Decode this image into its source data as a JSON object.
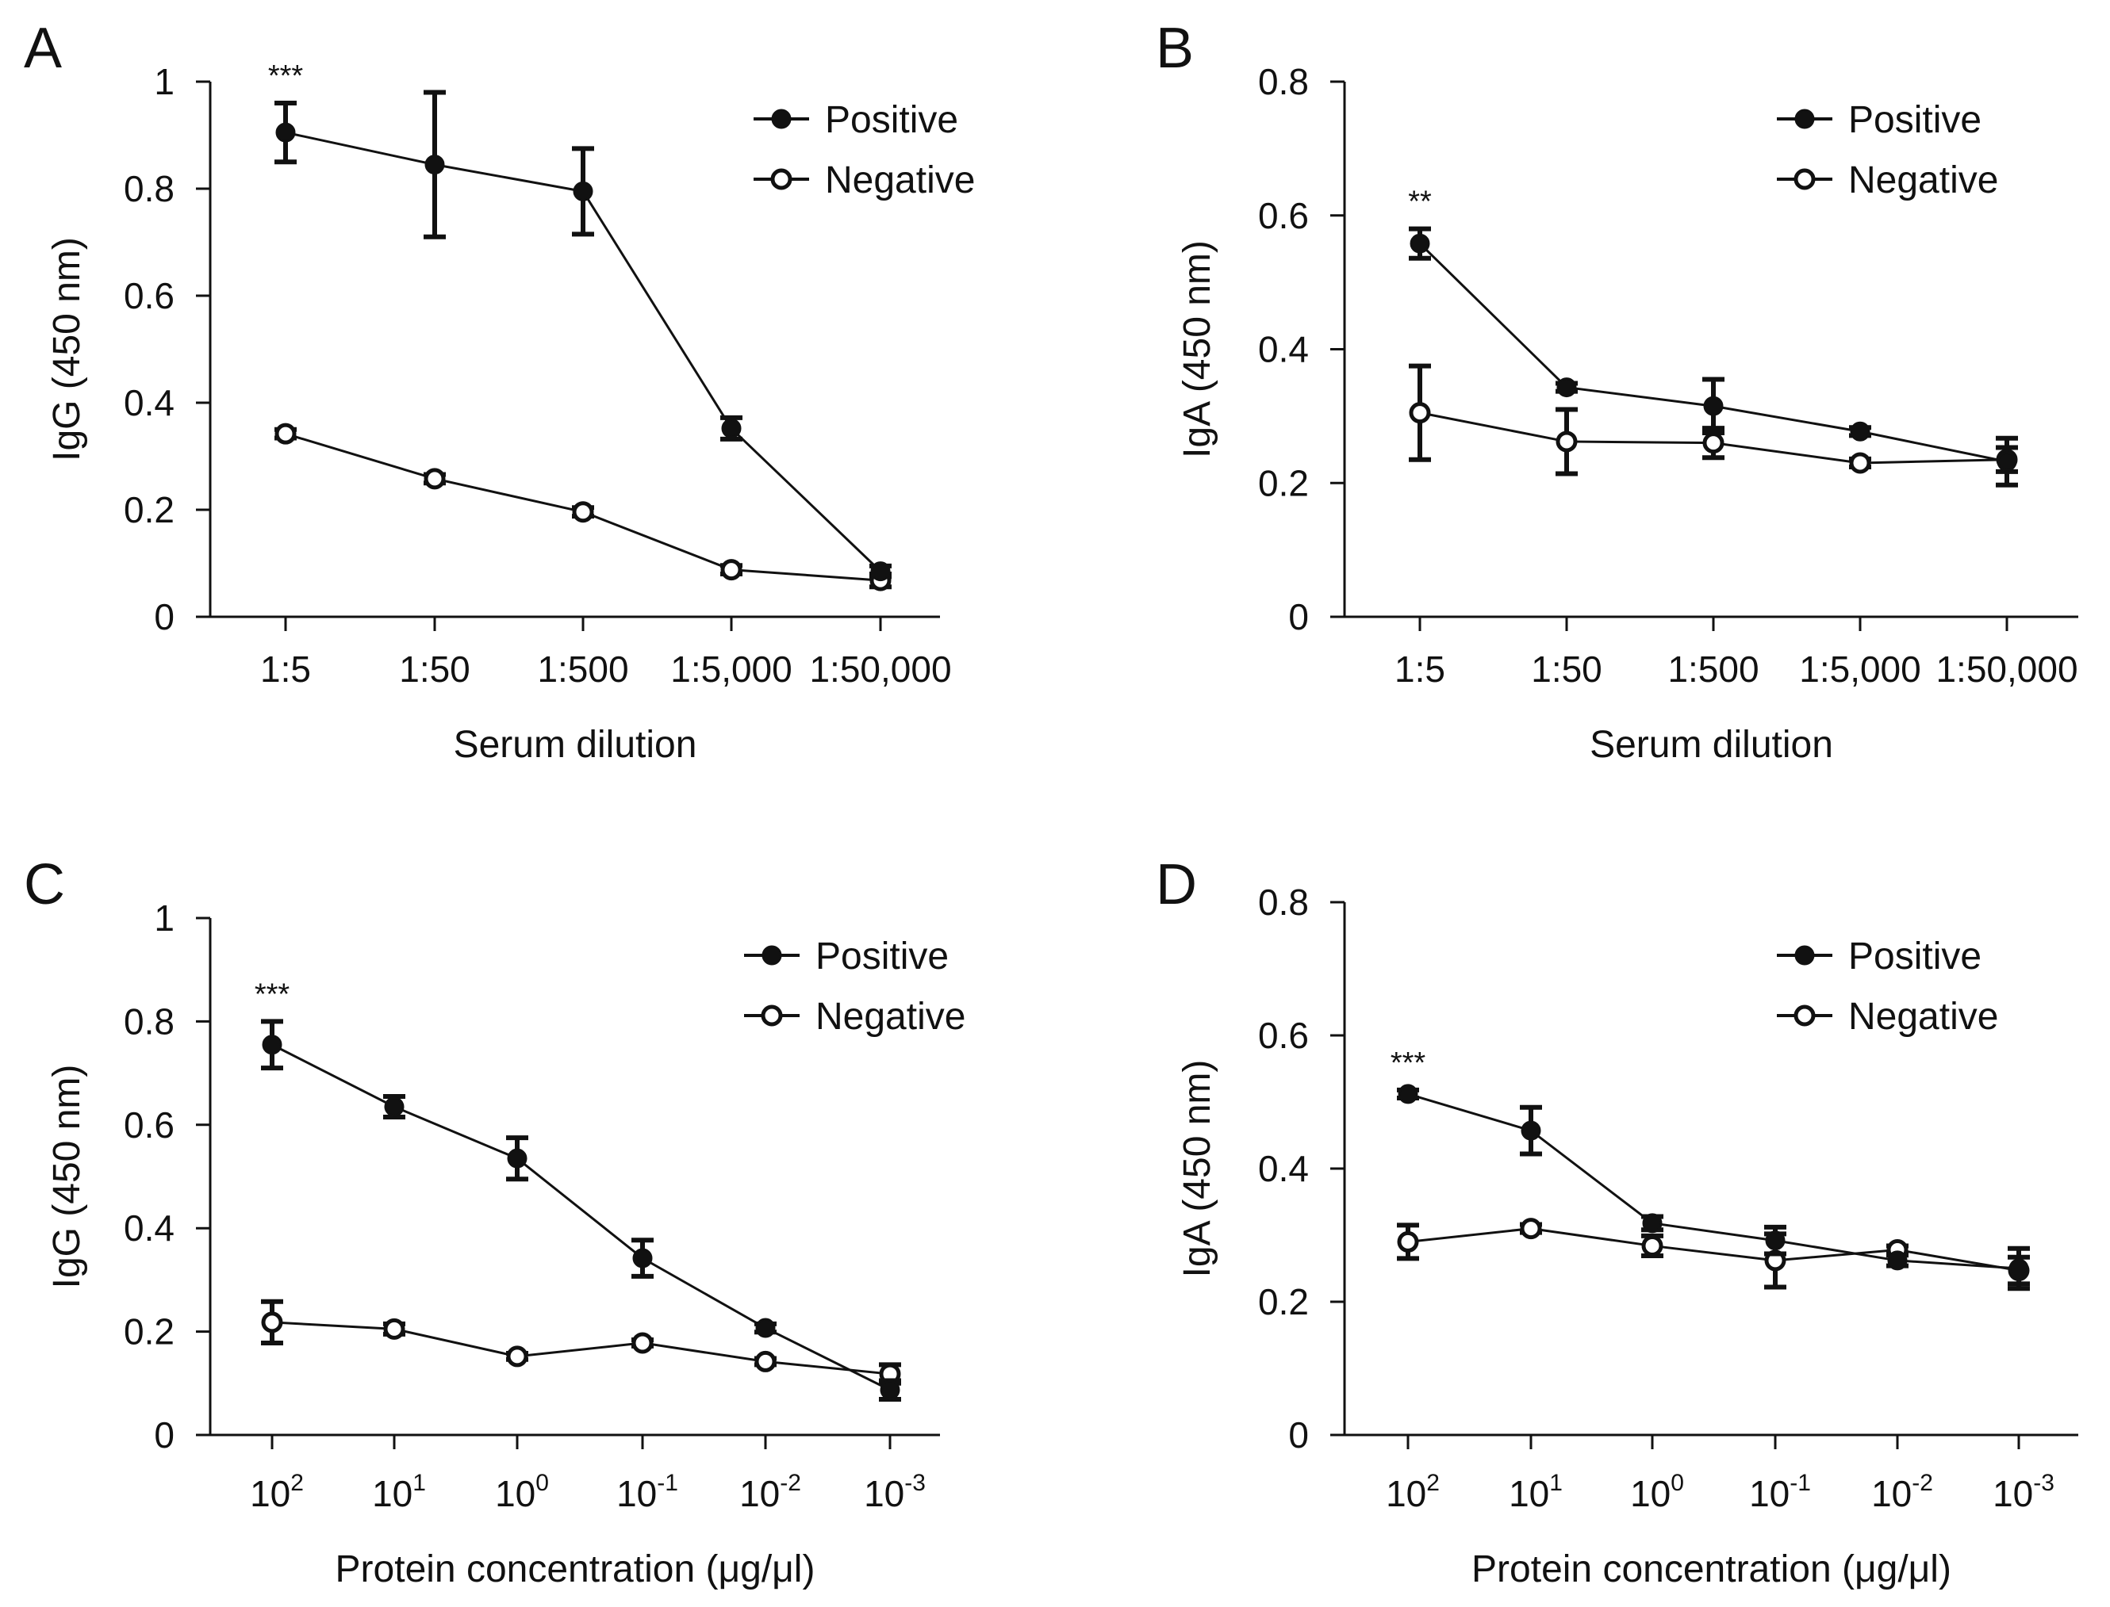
{
  "colors": {
    "ink": "#111111",
    "background": "#ffffff",
    "hollow": "#ffffff"
  },
  "chart_data": [
    {
      "panel": "A",
      "type": "line",
      "categories": [
        "1:5",
        "1:50",
        "1:500",
        "1:5,000",
        "1:50,000"
      ],
      "xlabel": "Serum dilution",
      "ylabel": "IgG (450 nm)",
      "ylim": [
        0,
        1
      ],
      "yticks": [
        "0",
        "0.2",
        "0.4",
        "0.6",
        "0.8",
        "1"
      ],
      "legend_position": "top-right",
      "grid": false,
      "annotation": {
        "text": "***",
        "category_index": 0
      },
      "series": [
        {
          "name": "Positive",
          "marker": "filled",
          "values": [
            0.905,
            0.845,
            0.795,
            0.352,
            0.085
          ],
          "errors": [
            0.055,
            0.135,
            0.08,
            0.02,
            0.01
          ]
        },
        {
          "name": "Negative",
          "marker": "open",
          "values": [
            0.342,
            0.258,
            0.196,
            0.088,
            0.068
          ],
          "errors": [
            0.008,
            0.008,
            0.008,
            0.008,
            0.012
          ]
        }
      ]
    },
    {
      "panel": "B",
      "type": "line",
      "categories": [
        "1:5",
        "1:50",
        "1:500",
        "1:5,000",
        "1:50,000"
      ],
      "xlabel": "Serum dilution",
      "ylabel": "IgA (450 nm)",
      "ylim": [
        0,
        0.8
      ],
      "yticks": [
        "0",
        "0.2",
        "0.4",
        "0.6",
        "0.8"
      ],
      "legend_position": "top-right",
      "grid": false,
      "annotation": {
        "text": "**",
        "category_index": 0
      },
      "series": [
        {
          "name": "Positive",
          "marker": "filled",
          "values": [
            0.558,
            0.343,
            0.315,
            0.277,
            0.232
          ],
          "errors": [
            0.022,
            0.006,
            0.04,
            0.006,
            0.035
          ]
        },
        {
          "name": "Negative",
          "marker": "open",
          "values": [
            0.305,
            0.262,
            0.26,
            0.23,
            0.235
          ],
          "errors": [
            0.07,
            0.048,
            0.022,
            0.006,
            0.018
          ]
        }
      ]
    },
    {
      "panel": "C",
      "type": "line",
      "categories": [
        "10^2",
        "10^1",
        "10^0",
        "10^-1",
        "10^-2",
        "10^-3"
      ],
      "categories_display": [
        {
          "base": "10",
          "exp": "2"
        },
        {
          "base": "10",
          "exp": "1"
        },
        {
          "base": "10",
          "exp": "0"
        },
        {
          "base": "10",
          "exp": "-1"
        },
        {
          "base": "10",
          "exp": "-2"
        },
        {
          "base": "10",
          "exp": "-3"
        }
      ],
      "xlabel": "Protein concentration (μg/μl)",
      "ylabel": "IgG (450 nm)",
      "ylim": [
        0,
        1
      ],
      "yticks": [
        "0",
        "0.2",
        "0.4",
        "0.6",
        "0.8",
        "1"
      ],
      "legend_position": "top-right",
      "grid": false,
      "annotation": {
        "text": "***",
        "category_index": 0
      },
      "series": [
        {
          "name": "Positive",
          "marker": "filled",
          "values": [
            0.755,
            0.635,
            0.535,
            0.342,
            0.207,
            0.087
          ],
          "errors": [
            0.045,
            0.02,
            0.04,
            0.035,
            0.008,
            0.018
          ]
        },
        {
          "name": "Negative",
          "marker": "open",
          "values": [
            0.218,
            0.205,
            0.152,
            0.178,
            0.142,
            0.118
          ],
          "errors": [
            0.04,
            0.01,
            0.006,
            0.006,
            0.006,
            0.018
          ]
        }
      ]
    },
    {
      "panel": "D",
      "type": "line",
      "categories": [
        "10^2",
        "10^1",
        "10^0",
        "10^-1",
        "10^-2",
        "10^-3"
      ],
      "categories_display": [
        {
          "base": "10",
          "exp": "2"
        },
        {
          "base": "10",
          "exp": "1"
        },
        {
          "base": "10",
          "exp": "0"
        },
        {
          "base": "10",
          "exp": "-1"
        },
        {
          "base": "10",
          "exp": "-2"
        },
        {
          "base": "10",
          "exp": "-3"
        }
      ],
      "xlabel": "Protein concentration (μg/μl)",
      "ylabel": "IgA (450 nm)",
      "ylim": [
        0,
        0.8
      ],
      "yticks": [
        "0",
        "0.2",
        "0.4",
        "0.6",
        "0.8"
      ],
      "legend_position": "top-right",
      "grid": false,
      "annotation": {
        "text": "***",
        "category_index": 0
      },
      "series": [
        {
          "name": "Positive",
          "marker": "filled",
          "values": [
            0.512,
            0.457,
            0.318,
            0.292,
            0.262,
            0.25
          ],
          "errors": [
            0.006,
            0.035,
            0.01,
            0.02,
            0.008,
            0.03
          ]
        },
        {
          "name": "Negative",
          "marker": "open",
          "values": [
            0.29,
            0.31,
            0.284,
            0.262,
            0.278,
            0.247
          ],
          "errors": [
            0.025,
            0.006,
            0.015,
            0.04,
            0.006,
            0.02
          ]
        }
      ]
    }
  ]
}
